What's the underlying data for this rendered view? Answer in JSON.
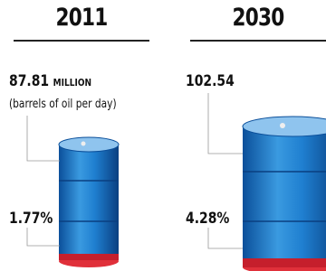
{
  "columns": [
    {
      "year": "2011",
      "amount": "87.81",
      "unit": "MILLION",
      "note": "(barrels of oil per day)",
      "share": "1.77%"
    },
    {
      "year": "2030",
      "amount": "102.54",
      "share": "4.28%"
    }
  ]
}
